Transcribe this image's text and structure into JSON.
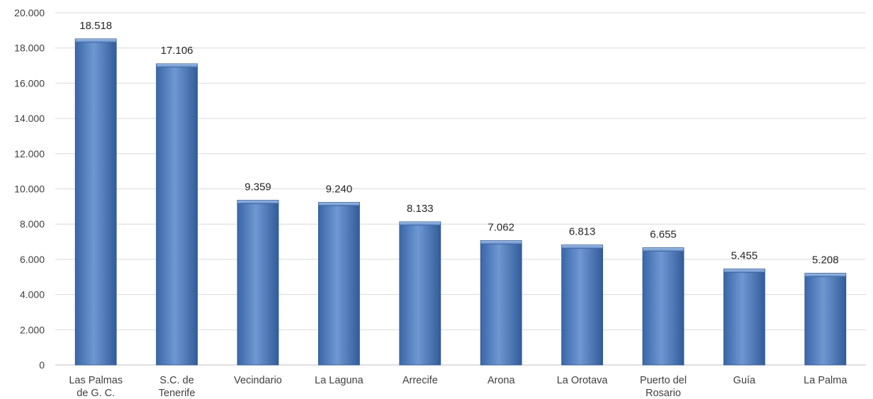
{
  "chart_data": {
    "type": "bar",
    "title": "",
    "xlabel": "",
    "ylabel": "",
    "ylim": [
      0,
      20000
    ],
    "yticks": [
      {
        "value": 0,
        "label": "0"
      },
      {
        "value": 2000,
        "label": "2.000"
      },
      {
        "value": 4000,
        "label": "4.000"
      },
      {
        "value": 6000,
        "label": "6.000"
      },
      {
        "value": 8000,
        "label": "8.000"
      },
      {
        "value": 10000,
        "label": "10.000"
      },
      {
        "value": 12000,
        "label": "12.000"
      },
      {
        "value": 14000,
        "label": "14.000"
      },
      {
        "value": 16000,
        "label": "16.000"
      },
      {
        "value": 18000,
        "label": "18.000"
      },
      {
        "value": 20000,
        "label": "20.000"
      }
    ],
    "grid": true,
    "legend": "none",
    "bar_color": "#4f81bd",
    "categories": [
      [
        "Las Palmas",
        "de G. C."
      ],
      [
        "S.C. de",
        "Tenerife"
      ],
      [
        "Vecindario"
      ],
      [
        "La Laguna"
      ],
      [
        "Arrecife"
      ],
      [
        "Arona"
      ],
      [
        "La Orotava"
      ],
      [
        "Puerto del",
        "Rosario"
      ],
      [
        "Guía"
      ],
      [
        "La Palma"
      ]
    ],
    "values": [
      18518,
      17106,
      9359,
      9240,
      8133,
      7062,
      6813,
      6655,
      5455,
      5208
    ],
    "value_labels": [
      "18.518",
      "17.106",
      "9.359",
      "9.240",
      "8.133",
      "7.062",
      "6.813",
      "6.655",
      "5.455",
      "5.208"
    ]
  }
}
